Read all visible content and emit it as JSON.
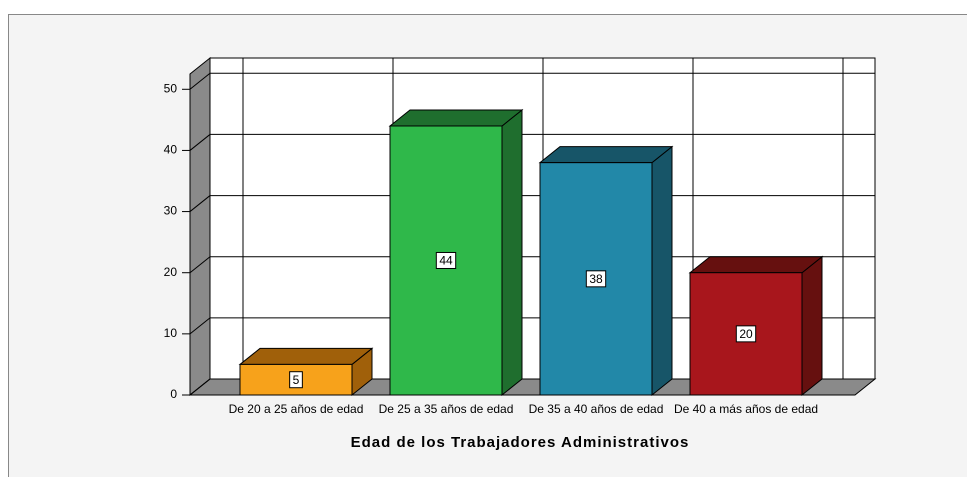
{
  "chart_data": {
    "type": "bar3d",
    "x_label": "Edad de los Trabajadores Administrativos",
    "categories": [
      "De 20 a 25 años de edad",
      "De 25 a 35 años de edad",
      "De 35 a 40 años de edad",
      "De 40 a más años de edad"
    ],
    "values": [
      5,
      44,
      38,
      20
    ],
    "colors": [
      "#f7a21b",
      "#2fb84a",
      "#2288a8",
      "#a8161c"
    ],
    "side_colors": [
      "#a0600a",
      "#1f6e2e",
      "#175568",
      "#66100f"
    ],
    "ylim": [
      0,
      52.5
    ],
    "yticks": [
      0,
      10,
      20,
      30,
      40,
      50
    ],
    "grid": true
  }
}
